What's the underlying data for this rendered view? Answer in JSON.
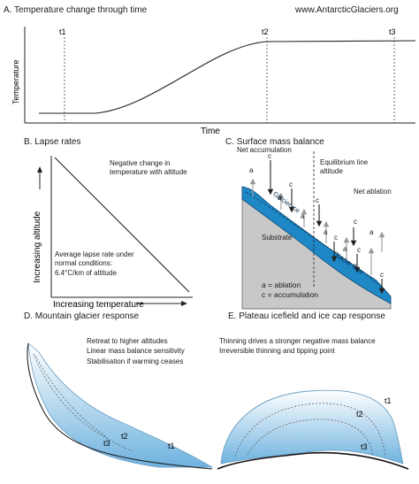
{
  "panel_a": {
    "title": "A. Temperature change through time",
    "source": "www.AntarcticGlaciers.org",
    "y_label": "Temperature",
    "x_label": "Time",
    "markers": [
      "t1",
      "t2",
      "t3"
    ]
  },
  "panel_b": {
    "title": "B. Lapse rates",
    "y_label": "Increasing altitude",
    "x_label": "Increasing temperature",
    "note_top": [
      "Negative change in",
      "temperature with altitude"
    ],
    "note_bottom": [
      "Average lapse rate under",
      "normal conditions:",
      "6.4°C/km of altitude"
    ]
  },
  "panel_c": {
    "title": "C. Surface mass balance",
    "net_accumulation": "Net accumulation",
    "ela": [
      "Equilibrium line",
      "altitude"
    ],
    "net_ablation": "Net ablation",
    "glacier_ice": "Glacier ice",
    "glacier_flow": "Glacier flow",
    "substrate": "Substrate",
    "legend": [
      "a = ablation",
      "c = accumulation"
    ],
    "arrow_letters": [
      "a",
      "c",
      "c",
      "a",
      "c",
      "a",
      "c",
      "a",
      "c",
      "a",
      "c",
      "a",
      "c"
    ]
  },
  "panel_d": {
    "title": "D. Mountain glacier response",
    "notes": [
      "Retreat to higher altitudes",
      "Linear mass balance sensitivity",
      "Stabilisation if warming ceases"
    ],
    "labels": [
      "t1",
      "t2",
      "t3"
    ]
  },
  "panel_e": {
    "title": "E. Plateau icefield and ice cap response",
    "notes": [
      "Thinning drives a stronger negative mass balance",
      "Irreversible thinning and tipping point"
    ],
    "labels": [
      "t1",
      "t2",
      "t3"
    ]
  },
  "colors": {
    "ice_dark": "#1e88c7",
    "ice_light": "#bfe0f2",
    "substrate": "#c8c8c8"
  }
}
